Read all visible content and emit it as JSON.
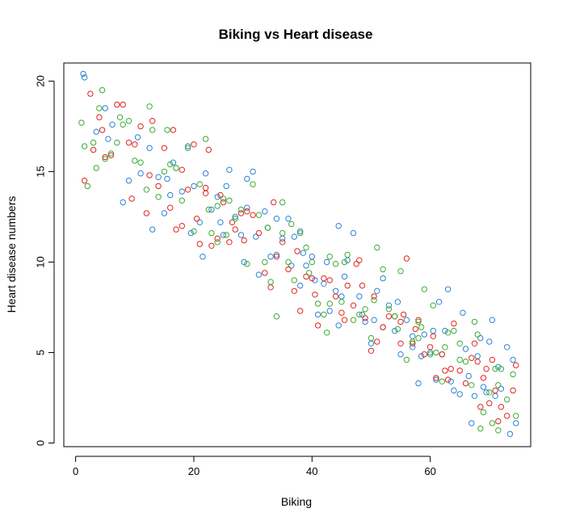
{
  "chart_data": {
    "type": "scatter",
    "title": "Biking vs Heart disease",
    "xlabel": "Biking",
    "ylabel": "Heart disease numbers",
    "xlim": [
      -2,
      77
    ],
    "ylim": [
      -0.2,
      21
    ],
    "x_ticks": [
      0,
      20,
      40,
      60
    ],
    "y_ticks": [
      0,
      5,
      10,
      15,
      20
    ],
    "grid": false,
    "legend": "none",
    "marker": "open-circle",
    "series": [
      {
        "color": "#2b83d6",
        "points": [
          [
            1.3,
            20.4
          ],
          [
            1.5,
            20.2
          ],
          [
            3.5,
            17.2
          ],
          [
            5,
            18.5
          ],
          [
            5.5,
            16.8
          ],
          [
            6.2,
            17.6
          ],
          [
            8,
            13.3
          ],
          [
            9,
            14.5
          ],
          [
            10.5,
            16.9
          ],
          [
            11,
            14.9
          ],
          [
            12.5,
            16.3
          ],
          [
            13,
            11.8
          ],
          [
            14,
            14.7
          ],
          [
            15,
            12.7
          ],
          [
            15.5,
            14.6
          ],
          [
            16,
            13.7
          ],
          [
            18,
            13.9
          ],
          [
            19,
            16.4
          ],
          [
            19.5,
            11.6
          ],
          [
            20,
            14.2
          ],
          [
            21,
            12.2
          ],
          [
            21.5,
            10.3
          ],
          [
            22,
            14.9
          ],
          [
            23,
            12.9
          ],
          [
            24,
            13.6
          ],
          [
            25,
            11.5
          ],
          [
            25.5,
            14.2
          ],
          [
            26,
            15.1
          ],
          [
            27,
            12.5
          ],
          [
            28,
            11.5
          ],
          [
            28.5,
            10.0
          ],
          [
            29,
            13.0
          ],
          [
            30,
            15.0
          ],
          [
            30.5,
            11.4
          ],
          [
            31,
            9.3
          ],
          [
            32,
            12.8
          ],
          [
            32.5,
            11.9
          ],
          [
            33,
            10.3
          ],
          [
            34,
            10.4
          ],
          [
            35,
            11.3
          ],
          [
            36,
            12.4
          ],
          [
            36.5,
            9.8
          ],
          [
            37,
            11.4
          ],
          [
            38,
            11.7
          ],
          [
            38.5,
            10.5
          ],
          [
            39,
            9.8
          ],
          [
            40,
            10.3
          ],
          [
            40.5,
            9.0
          ],
          [
            41,
            7.1
          ],
          [
            42,
            8.8
          ],
          [
            42.5,
            10.0
          ],
          [
            43,
            7.3
          ],
          [
            44,
            8.4
          ],
          [
            44.5,
            6.5
          ],
          [
            45,
            8.1
          ],
          [
            45.5,
            9.2
          ],
          [
            46,
            10.1
          ],
          [
            47,
            11.6
          ],
          [
            48,
            8.1
          ],
          [
            48.5,
            7.1
          ],
          [
            49,
            6.7
          ],
          [
            50,
            5.5
          ],
          [
            50.5,
            6.8
          ],
          [
            51,
            8.4
          ],
          [
            52,
            6.4
          ],
          [
            53,
            7.6
          ],
          [
            54,
            6.2
          ],
          [
            54.5,
            7.8
          ],
          [
            55,
            4.9
          ],
          [
            56,
            6.8
          ],
          [
            57,
            5.3
          ],
          [
            58,
            3.3
          ],
          [
            58.5,
            4.8
          ],
          [
            59,
            6.0
          ],
          [
            60,
            5.0
          ],
          [
            60.5,
            6.2
          ],
          [
            61,
            3.5
          ],
          [
            62,
            4.9
          ],
          [
            62.5,
            6.2
          ],
          [
            63,
            8.5
          ],
          [
            63.5,
            3.4
          ],
          [
            64,
            2.9
          ],
          [
            65,
            2.7
          ],
          [
            65.5,
            7.2
          ],
          [
            66,
            5.2
          ],
          [
            67,
            1.1
          ],
          [
            67.5,
            2.6
          ],
          [
            68,
            4.8
          ],
          [
            68.5,
            5.8
          ],
          [
            69,
            3.1
          ],
          [
            69.5,
            2.8
          ],
          [
            70,
            5.6
          ],
          [
            70.5,
            6.8
          ],
          [
            71,
            2.6
          ],
          [
            71.5,
            4.2
          ],
          [
            72,
            3.0
          ],
          [
            73,
            5.3
          ],
          [
            73.5,
            0.5
          ],
          [
            74,
            4.6
          ],
          [
            74.5,
            1.1
          ],
          [
            34,
            12.4
          ],
          [
            52,
            9.1
          ],
          [
            57,
            5.9
          ],
          [
            61.5,
            7.8
          ],
          [
            66.5,
            3.7
          ],
          [
            44.5,
            12.0
          ],
          [
            38,
            8.7
          ],
          [
            29,
            14.6
          ],
          [
            16.5,
            15.5
          ],
          [
            24.5,
            12.2
          ]
        ]
      },
      {
        "color": "#e0261f",
        "points": [
          [
            1.5,
            14.5
          ],
          [
            2.5,
            19.3
          ],
          [
            3,
            16.2
          ],
          [
            4,
            18.0
          ],
          [
            4.5,
            17.3
          ],
          [
            5,
            15.8
          ],
          [
            6,
            15.9
          ],
          [
            7,
            18.7
          ],
          [
            8,
            18.7
          ],
          [
            9,
            16.6
          ],
          [
            9.5,
            13.5
          ],
          [
            10,
            16.5
          ],
          [
            11,
            17.5
          ],
          [
            12,
            12.7
          ],
          [
            12.5,
            14.8
          ],
          [
            13,
            17.8
          ],
          [
            14,
            14.2
          ],
          [
            15,
            16.3
          ],
          [
            16,
            13.0
          ],
          [
            16.5,
            17.3
          ],
          [
            17,
            11.8
          ],
          [
            18,
            12.0
          ],
          [
            19,
            14.0
          ],
          [
            20,
            16.5
          ],
          [
            20.5,
            12.4
          ],
          [
            21,
            11.0
          ],
          [
            22,
            13.8
          ],
          [
            22.5,
            16.2
          ],
          [
            23,
            10.9
          ],
          [
            24,
            11.3
          ],
          [
            24.5,
            13.7
          ],
          [
            25,
            13.3
          ],
          [
            26,
            11.1
          ],
          [
            27,
            11.8
          ],
          [
            28,
            12.7
          ],
          [
            28.5,
            11.2
          ],
          [
            29,
            12.8
          ],
          [
            30,
            12.6
          ],
          [
            31,
            11.6
          ],
          [
            32,
            9.4
          ],
          [
            33,
            8.6
          ],
          [
            34,
            10.3
          ],
          [
            35,
            11.1
          ],
          [
            36,
            9.6
          ],
          [
            37,
            8.4
          ],
          [
            37.5,
            10.6
          ],
          [
            38,
            7.3
          ],
          [
            39,
            9.2
          ],
          [
            40,
            9.1
          ],
          [
            40.5,
            8.2
          ],
          [
            41,
            6.5
          ],
          [
            42,
            9.1
          ],
          [
            43,
            9.0
          ],
          [
            44,
            8.1
          ],
          [
            45,
            7.2
          ],
          [
            45.5,
            6.8
          ],
          [
            46,
            8.7
          ],
          [
            47,
            7.6
          ],
          [
            48,
            10.1
          ],
          [
            48.5,
            8.7
          ],
          [
            49,
            6.9
          ],
          [
            50,
            5.1
          ],
          [
            50.5,
            8.1
          ],
          [
            51,
            5.6
          ],
          [
            52,
            6.4
          ],
          [
            53,
            7.0
          ],
          [
            54,
            7.0
          ],
          [
            55,
            6.7
          ],
          [
            55.5,
            7.1
          ],
          [
            56,
            10.2
          ],
          [
            57,
            5.5
          ],
          [
            57.5,
            6.3
          ],
          [
            58,
            6.8
          ],
          [
            59,
            4.9
          ],
          [
            60,
            5.3
          ],
          [
            60.5,
            5.9
          ],
          [
            61,
            3.6
          ],
          [
            62,
            4.9
          ],
          [
            62.5,
            4.0
          ],
          [
            63,
            3.5
          ],
          [
            64,
            6.6
          ],
          [
            65,
            4.0
          ],
          [
            66,
            3.3
          ],
          [
            67,
            4.7
          ],
          [
            67.5,
            5.5
          ],
          [
            68,
            4.5
          ],
          [
            68.5,
            2.0
          ],
          [
            69,
            3.6
          ],
          [
            70,
            2.2
          ],
          [
            70.5,
            4.6
          ],
          [
            71,
            2.9
          ],
          [
            71.5,
            1.2
          ],
          [
            72,
            2.0
          ],
          [
            73,
            1.5
          ],
          [
            74,
            2.9
          ],
          [
            74.5,
            4.3
          ],
          [
            22,
            14.1
          ],
          [
            26.5,
            12.2
          ],
          [
            33.5,
            13.3
          ],
          [
            18,
            15.1
          ],
          [
            47.5,
            9.9
          ],
          [
            55,
            5.5
          ],
          [
            63.5,
            4.1
          ],
          [
            69.5,
            4.1
          ]
        ]
      },
      {
        "color": "#3cab33",
        "points": [
          [
            1.0,
            17.7
          ],
          [
            1.5,
            16.4
          ],
          [
            2,
            14.2
          ],
          [
            3,
            16.6
          ],
          [
            3.5,
            15.2
          ],
          [
            4,
            18.5
          ],
          [
            4.5,
            19.5
          ],
          [
            5,
            15.7
          ],
          [
            6,
            16.0
          ],
          [
            7,
            16.6
          ],
          [
            7.5,
            18.0
          ],
          [
            8,
            17.6
          ],
          [
            9,
            17.8
          ],
          [
            10,
            15.6
          ],
          [
            11,
            15.5
          ],
          [
            12,
            14.0
          ],
          [
            12.5,
            18.6
          ],
          [
            13,
            17.3
          ],
          [
            14,
            13.6
          ],
          [
            15,
            15.0
          ],
          [
            15.5,
            17.3
          ],
          [
            16,
            15.4
          ],
          [
            17,
            15.2
          ],
          [
            18,
            13.4
          ],
          [
            19,
            16.3
          ],
          [
            20,
            11.7
          ],
          [
            21,
            14.3
          ],
          [
            22,
            16.8
          ],
          [
            22.5,
            12.9
          ],
          [
            23,
            11.6
          ],
          [
            24,
            11.1
          ],
          [
            25,
            13.5
          ],
          [
            25.5,
            11.5
          ],
          [
            26,
            13.4
          ],
          [
            27,
            12.4
          ],
          [
            28,
            12.9
          ],
          [
            29,
            9.9
          ],
          [
            30,
            14.3
          ],
          [
            31,
            12.6
          ],
          [
            32,
            10.0
          ],
          [
            32.5,
            11.9
          ],
          [
            33,
            8.9
          ],
          [
            34,
            7.0
          ],
          [
            35,
            11.6
          ],
          [
            36,
            10.0
          ],
          [
            36.5,
            12.1
          ],
          [
            37,
            9.0
          ],
          [
            38,
            11.6
          ],
          [
            39,
            10.8
          ],
          [
            39.5,
            9.4
          ],
          [
            40,
            10.0
          ],
          [
            41,
            7.7
          ],
          [
            42,
            7.1
          ],
          [
            42.5,
            6.1
          ],
          [
            43,
            7.7
          ],
          [
            44,
            9.9
          ],
          [
            45,
            7.8
          ],
          [
            45.5,
            10.0
          ],
          [
            46,
            10.4
          ],
          [
            47,
            6.8
          ],
          [
            48,
            7.1
          ],
          [
            49,
            7.4
          ],
          [
            50,
            5.8
          ],
          [
            51,
            10.8
          ],
          [
            52,
            9.6
          ],
          [
            53,
            7.4
          ],
          [
            54,
            7.0
          ],
          [
            54.5,
            6.3
          ],
          [
            55,
            9.5
          ],
          [
            56,
            4.6
          ],
          [
            57,
            5.6
          ],
          [
            58,
            6.7
          ],
          [
            58.5,
            6.4
          ],
          [
            59,
            8.5
          ],
          [
            60,
            4.9
          ],
          [
            60.5,
            7.6
          ],
          [
            61,
            5.0
          ],
          [
            62,
            3.4
          ],
          [
            62.5,
            5.3
          ],
          [
            63,
            6.1
          ],
          [
            64,
            6.2
          ],
          [
            65,
            5.5
          ],
          [
            66,
            4.5
          ],
          [
            67,
            3.2
          ],
          [
            67.5,
            6.7
          ],
          [
            68,
            6.0
          ],
          [
            68.5,
            0.8
          ],
          [
            69,
            1.7
          ],
          [
            70,
            2.8
          ],
          [
            70.5,
            1.1
          ],
          [
            71,
            4.1
          ],
          [
            71.5,
            0.7
          ],
          [
            72,
            4.1
          ],
          [
            73,
            2.4
          ],
          [
            74,
            3.8
          ],
          [
            74.5,
            1.5
          ],
          [
            17,
            15.2
          ],
          [
            24,
            13.1
          ],
          [
            35,
            13.3
          ],
          [
            43,
            10.3
          ],
          [
            50.5,
            7.9
          ],
          [
            58,
            5.8
          ],
          [
            65,
            4.6
          ],
          [
            71.5,
            3.2
          ]
        ]
      }
    ]
  }
}
